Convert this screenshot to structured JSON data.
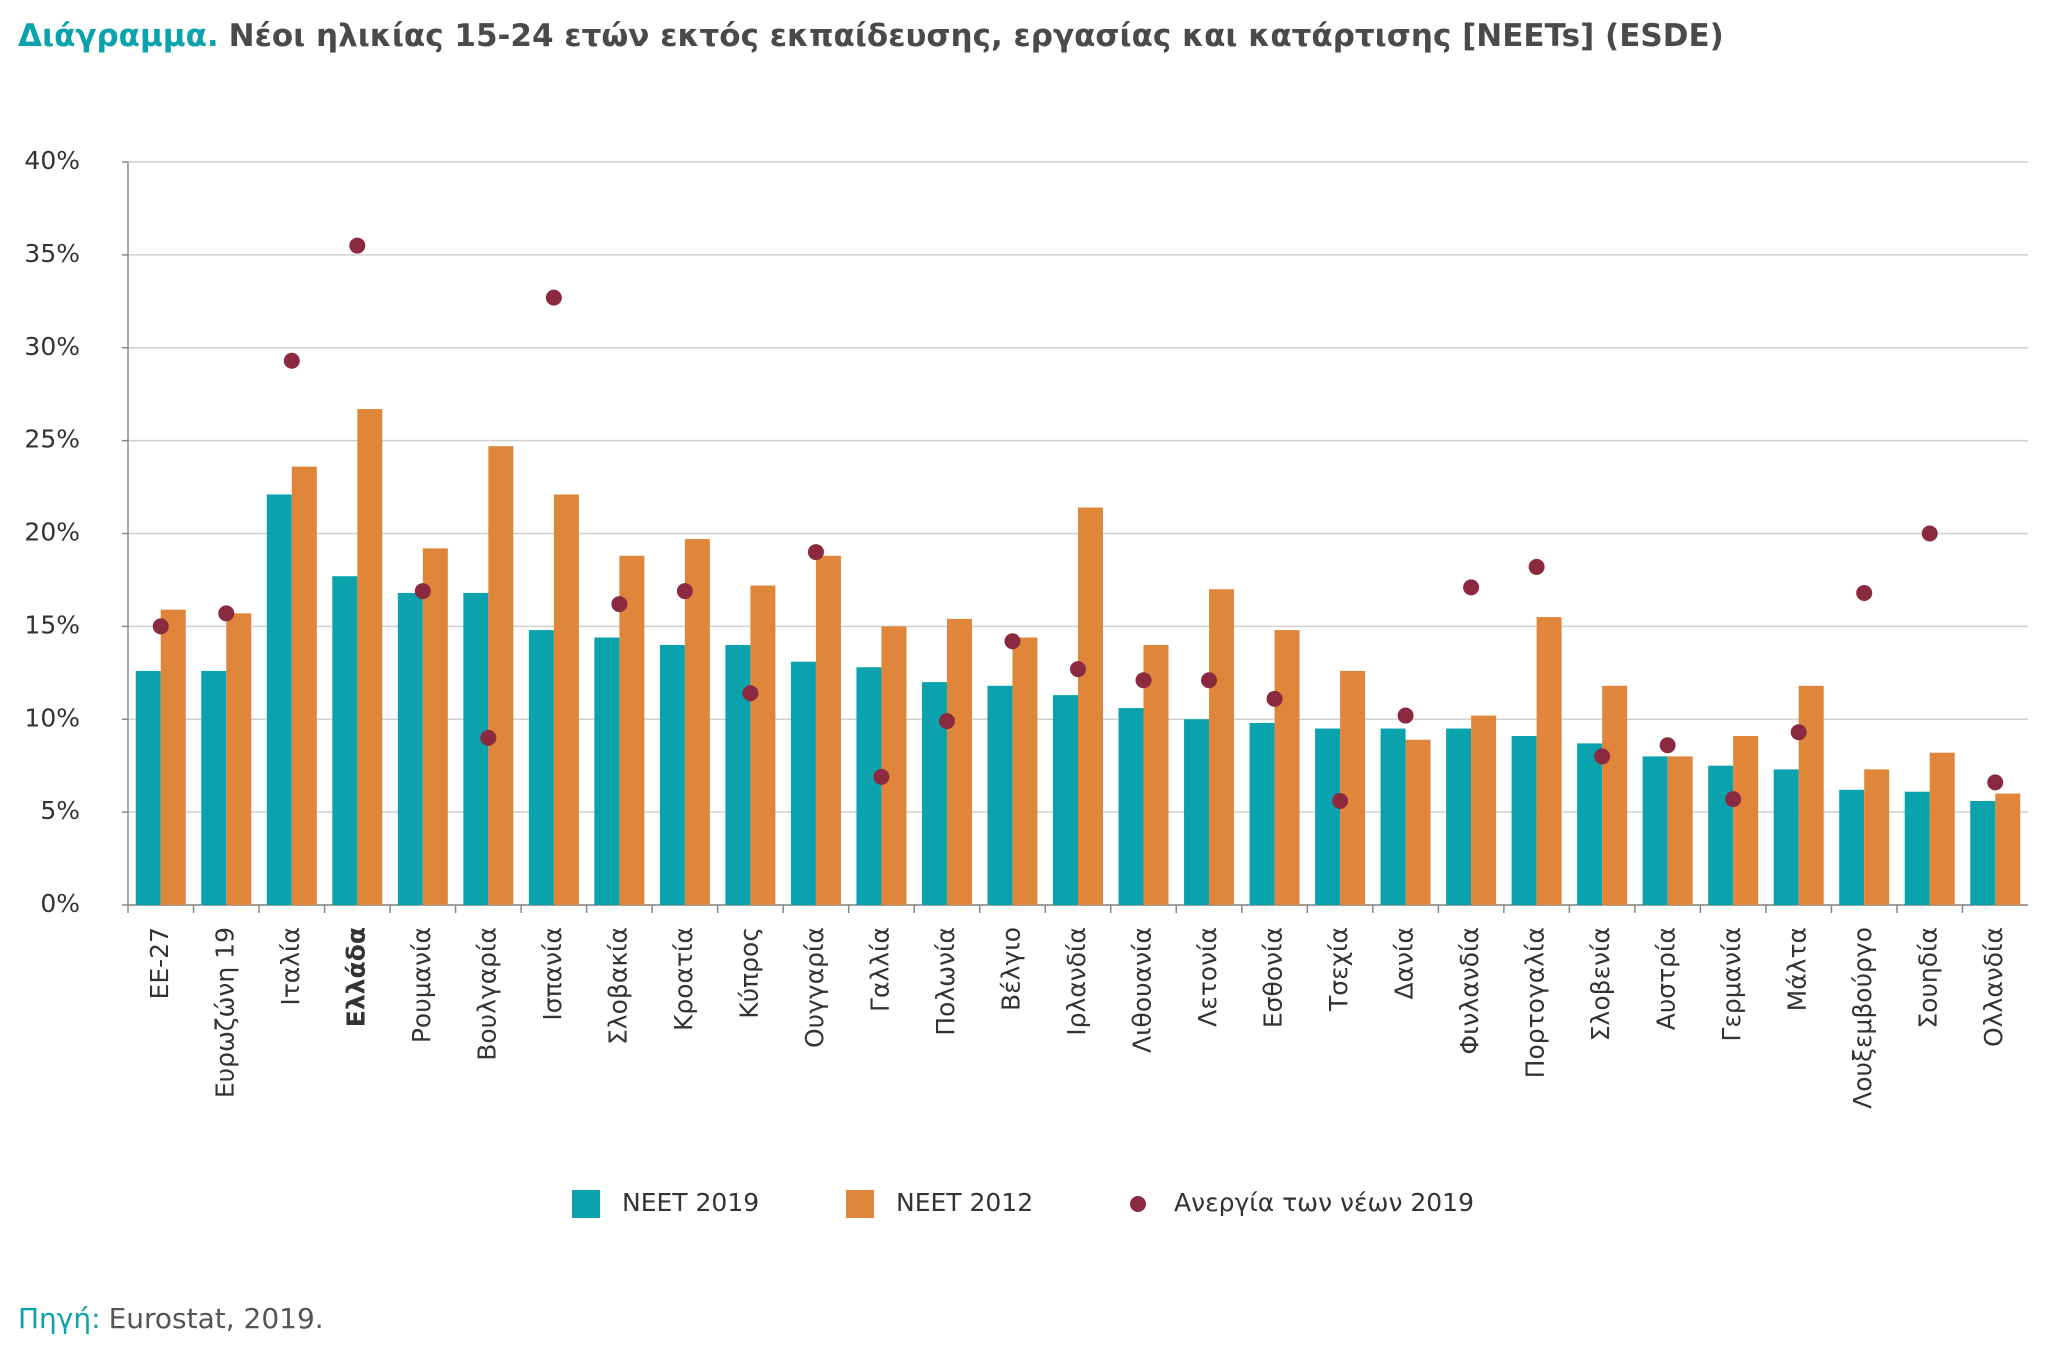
{
  "chart_data": {
    "type": "bar",
    "title_prefix": "Διάγραμμα.",
    "title": "Νέοι ηλικίας 15-24 ετών εκτός εκπαίδευσης, εργασίας και κατάρτισης [NEETs] (ESDE)",
    "source_prefix": "Πηγή:",
    "source": "Eurostat, 2019.",
    "categories": [
      "ΕΕ-27",
      "Ευρωζώνη 19",
      "Ιταλία",
      "Ελλάδα",
      "Ρουμανία",
      "Βουλγαρία",
      "Ισπανία",
      "Σλοβακία",
      "Κροατία",
      "Κύπρος",
      "Ουγγαρία",
      "Γαλλία",
      "Πολωνία",
      "Βέλγιο",
      "Ιρλανδία",
      "Λιθουανία",
      "Λετονία",
      "Εσθονία",
      "Τσεχία",
      "Δανία",
      "Φινλανδία",
      "Πορτογαλία",
      "Σλοβενία",
      "Αυστρία",
      "Γερμανία",
      "Μάλτα",
      "Λουξεμβούργο",
      "Σουηδία",
      "Ολλανδία"
    ],
    "series": [
      {
        "name": "NEET 2019",
        "color": "#0aa3ad",
        "type": "bar",
        "values": [
          12.6,
          12.6,
          22.1,
          17.7,
          16.8,
          16.8,
          14.8,
          14.4,
          14.0,
          14.0,
          13.1,
          12.8,
          12.0,
          11.8,
          11.3,
          10.6,
          10.0,
          9.8,
          9.5,
          9.5,
          9.5,
          9.1,
          8.7,
          8.0,
          7.5,
          7.3,
          6.2,
          6.1,
          5.6
        ]
      },
      {
        "name": "NEET 2012",
        "color": "#e0863a",
        "type": "bar",
        "values": [
          15.9,
          15.7,
          23.6,
          26.7,
          19.2,
          24.7,
          22.1,
          18.8,
          19.7,
          17.2,
          18.8,
          15.0,
          15.4,
          14.4,
          21.4,
          14.0,
          17.0,
          14.8,
          12.6,
          8.9,
          10.2,
          15.5,
          11.8,
          8.0,
          9.1,
          11.8,
          7.3,
          8.2,
          6.0
        ]
      },
      {
        "name": "Ανεργία των νέων 2019",
        "color": "#8b2941",
        "type": "scatter",
        "values": [
          15.0,
          15.7,
          29.3,
          35.5,
          16.9,
          9.0,
          32.7,
          16.2,
          16.9,
          11.4,
          19.0,
          6.9,
          9.9,
          14.2,
          12.7,
          12.1,
          12.1,
          11.1,
          5.6,
          10.2,
          17.1,
          18.2,
          8.0,
          8.6,
          5.7,
          9.3,
          16.8,
          20.0,
          6.6
        ]
      }
    ],
    "ylim": [
      0,
      40
    ],
    "yticks": [
      {
        "value": 0,
        "label": "0%"
      },
      {
        "value": 5,
        "label": "5%"
      },
      {
        "value": 10,
        "label": "10%"
      },
      {
        "value": 15,
        "label": "15%"
      },
      {
        "value": 20,
        "label": "20%"
      },
      {
        "value": 25,
        "label": "25%"
      },
      {
        "value": 30,
        "label": "30%"
      },
      {
        "value": 35,
        "label": "35%"
      },
      {
        "value": 40,
        "label": "40%"
      }
    ],
    "grid": true
  }
}
